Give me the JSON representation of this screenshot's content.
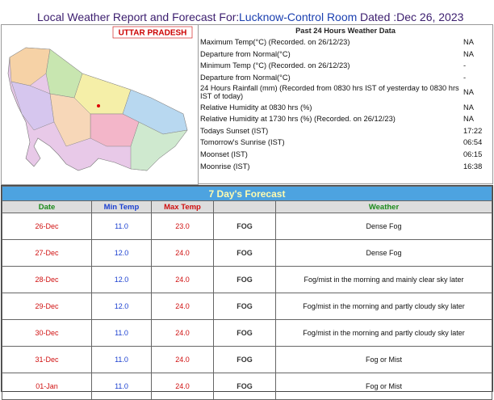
{
  "header": {
    "title": "Local Weather Report and Forecast For:",
    "station": "Lucknow-Control Room",
    "dated": "Dated :Dec 26, 2023"
  },
  "map": {
    "label": "UTTAR PRADESH"
  },
  "past": {
    "title": "Past 24 Hours Weather Data",
    "rows": [
      [
        "Maximum Temp(°C) (Recorded. on 26/12/23)",
        "NA"
      ],
      [
        "Departure from Normal(°C)",
        "NA"
      ],
      [
        "Minimum Temp (°C) (Recorded. on 26/12/23)",
        "-"
      ],
      [
        "Departure from Normal(°C)",
        "-"
      ],
      [
        "24 Hours Rainfall (mm) (Recorded from 0830 hrs IST of yesterday to 0830 hrs IST of today)",
        "NA"
      ],
      [
        "Relative Humidity at 0830 hrs (%)",
        "NA"
      ],
      [
        "Relative Humidity at 1730 hrs (%) (Recorded. on 26/12/23)",
        "NA"
      ],
      [
        "Todays Sunset (IST)",
        "17:22"
      ],
      [
        "Tomorrow's Sunrise (IST)",
        "06:54"
      ],
      [
        "Moonset (IST)",
        "06:15"
      ],
      [
        "Moonrise (IST)",
        "16:38"
      ]
    ]
  },
  "forecast": {
    "title": "7 Day's Forecast",
    "headers": [
      "Date",
      "Min Temp",
      "Max Temp",
      "Weather"
    ],
    "rows": [
      [
        "26-Dec",
        "11.0",
        "23.0",
        "FOG",
        "Dense Fog"
      ],
      [
        "27-Dec",
        "12.0",
        "24.0",
        "FOG",
        "Dense Fog"
      ],
      [
        "28-Dec",
        "12.0",
        "24.0",
        "FOG",
        "Fog/mist in the morning and mainly clear sky later"
      ],
      [
        "29-Dec",
        "12.0",
        "24.0",
        "FOG",
        "Fog/mist in the morning and partly cloudy sky later"
      ],
      [
        "30-Dec",
        "11.0",
        "24.0",
        "FOG",
        "Fog/mist in the morning and partly cloudy sky later"
      ],
      [
        "31-Dec",
        "11.0",
        "24.0",
        "FOG",
        "Fog or Mist"
      ],
      [
        "01-Jan",
        "11.0",
        "24.0",
        "FOG",
        "Fog or Mist"
      ]
    ]
  }
}
